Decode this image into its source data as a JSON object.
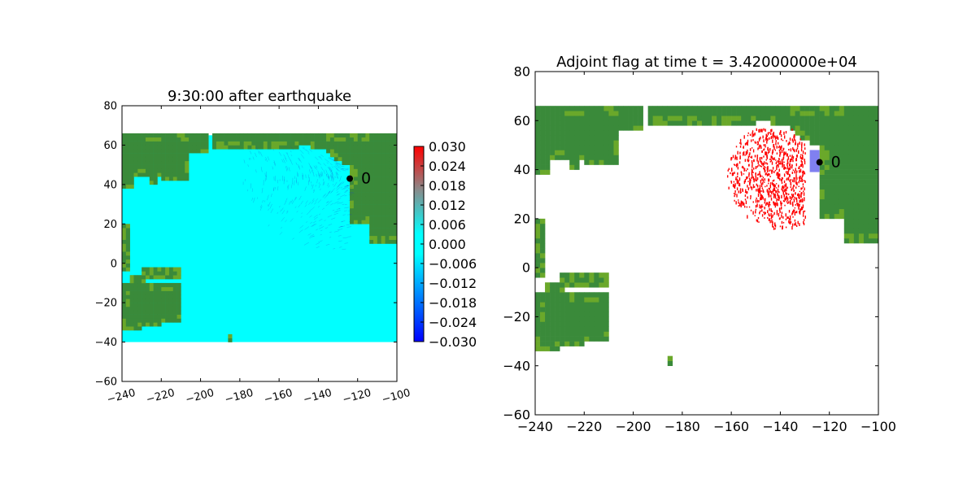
{
  "chart_data": [
    {
      "type": "heatmap",
      "title": "9:30:00 after earthquake",
      "xlim": [
        -240,
        -100
      ],
      "ylim": [
        -60,
        80
      ],
      "x_ticks": [
        "−240",
        "−220",
        "−200",
        "−180",
        "−160",
        "−140",
        "−120",
        "−100"
      ],
      "x_tick_values": [
        -240,
        -220,
        -200,
        -180,
        -160,
        -140,
        -120,
        -100
      ],
      "y_ticks": [
        "−60",
        "−40",
        "−20",
        "0",
        "20",
        "40",
        "60",
        "80"
      ],
      "y_tick_values": [
        -60,
        -40,
        -20,
        0,
        20,
        40,
        60,
        80
      ],
      "data_extent": {
        "lon": [
          -240,
          -100
        ],
        "lat": [
          -40,
          65
        ]
      },
      "marker": {
        "label": "0",
        "lon": -124,
        "lat": 43
      },
      "colorbar": {
        "min": -0.03,
        "max": 0.03,
        "ticks": [
          "0.030",
          "0.024",
          "0.018",
          "0.012",
          "0.006",
          "0.000",
          "−0.006",
          "−0.012",
          "−0.018",
          "−0.024",
          "−0.030"
        ],
        "tick_values": [
          0.03,
          0.024,
          0.018,
          0.012,
          0.006,
          0.0,
          -0.006,
          -0.012,
          -0.018,
          -0.024,
          -0.03
        ]
      },
      "colors": {
        "water": "#00ffff",
        "land": "#3a8a3a",
        "land_light": "#6aa82a",
        "wave_dark": "#1a40c8"
      }
    },
    {
      "type": "heatmap",
      "title": "Adjoint flag at time t = 3.42000000e+04",
      "xlim": [
        -240,
        -100
      ],
      "ylim": [
        -60,
        80
      ],
      "x_ticks": [
        "−240",
        "−220",
        "−200",
        "−180",
        "−160",
        "−140",
        "−120",
        "−100"
      ],
      "x_tick_values": [
        -240,
        -220,
        -200,
        -180,
        -160,
        -140,
        -120,
        -100
      ],
      "y_ticks": [
        "−60",
        "−40",
        "−20",
        "0",
        "20",
        "40",
        "60",
        "80"
      ],
      "y_tick_values": [
        -60,
        -40,
        -20,
        0,
        20,
        40,
        60,
        80
      ],
      "data_extent": {
        "lon": [
          -240,
          -100
        ],
        "lat": [
          -40,
          65
        ]
      },
      "marker": {
        "label": "0",
        "lon": -124,
        "lat": 43
      },
      "flag_region": {
        "lon": [
          -166,
          -130
        ],
        "lat": [
          15,
          57
        ]
      },
      "box_region": {
        "lon": [
          -128,
          -124
        ],
        "lat": [
          39,
          48
        ]
      },
      "colors": {
        "flag": "#ff0000",
        "land": "#3a8a3a",
        "land_light": "#6aa82a",
        "box": "#8080f0"
      }
    }
  ]
}
